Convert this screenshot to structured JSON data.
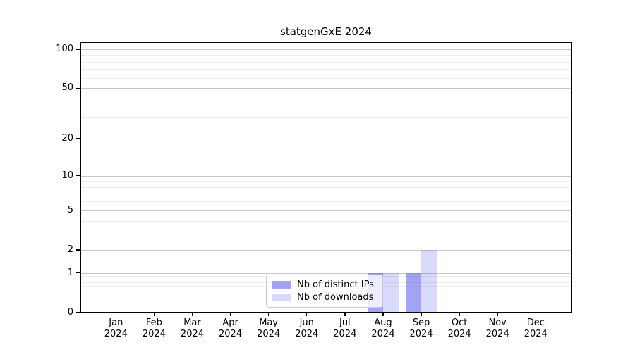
{
  "chart_data": {
    "type": "bar",
    "title": "statgenGxE 2024",
    "categories": [
      "Jan 2024",
      "Feb 2024",
      "Mar 2024",
      "Apr 2024",
      "May 2024",
      "Jun 2024",
      "Jul 2024",
      "Aug 2024",
      "Sep 2024",
      "Oct 2024",
      "Nov 2024",
      "Dec 2024"
    ],
    "series": [
      {
        "name": "Nb of distinct IPs",
        "values": [
          0,
          0,
          0,
          0,
          0,
          0,
          0,
          1,
          1,
          0,
          0,
          0
        ],
        "color": "#6666ee99"
      },
      {
        "name": "Nb of downloads",
        "values": [
          0,
          0,
          0,
          0,
          0,
          0,
          0,
          1,
          2,
          0,
          0,
          0
        ],
        "color": "#6666ee40"
      }
    ],
    "xlabel": "",
    "ylabel": "",
    "yscale": "log1p",
    "ylim": [
      0,
      113
    ],
    "y_major_ticks": [
      0,
      1,
      2,
      5,
      10,
      20,
      50,
      100
    ],
    "y_minor_ticks": [
      0.3,
      0.4,
      0.6,
      0.7,
      0.8,
      0.9,
      3,
      4,
      6,
      7,
      8,
      9,
      30,
      40,
      60,
      70,
      80,
      90
    ],
    "grid": "horizontal",
    "legend_position": "inside-bottom-center"
  },
  "styles": {
    "background": "#ffffff",
    "spine_color": "#000000",
    "grid_major_color": "#c6c6c6",
    "grid_minor_color": "#ececec",
    "text_color": "#000000",
    "legend_background": "#ffffffcc",
    "legend_border": "#cccccc"
  }
}
